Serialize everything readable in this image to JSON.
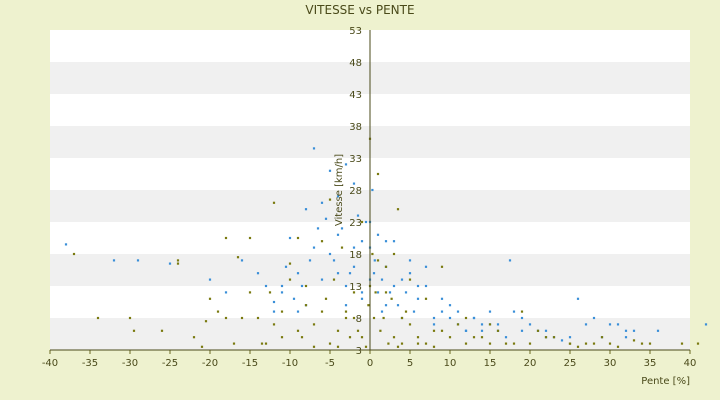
{
  "chart_data": {
    "type": "scatter",
    "title": "VITESSE vs PENTE",
    "xlabel": "Pente [%]",
    "ylabel": "Vitesse [km/h]",
    "xlim": [
      -40,
      40
    ],
    "ylim": [
      3,
      53
    ],
    "x_ticks": [
      "-40",
      "-35",
      "-30",
      "-25",
      "-20",
      "-15",
      "-10",
      "-5",
      "0",
      "5",
      "10",
      "15",
      "20",
      "25",
      "30",
      "35",
      "40"
    ],
    "y_ticks": [
      "3",
      "8",
      "13",
      "18",
      "23",
      "28",
      "33",
      "38",
      "43",
      "48",
      "53"
    ],
    "grid": "horizontal",
    "band_colors": [
      "#ffffff",
      "#f0f0f0"
    ],
    "background": "#eef2cf",
    "series": [
      {
        "color": "#3a8fd8",
        "x": [
          -38,
          -32,
          -29,
          -25,
          -20,
          -18,
          -16,
          -14,
          -13,
          -12,
          -11,
          -10.5,
          -10,
          -9.5,
          -9,
          -8.5,
          -8,
          -7.5,
          -7,
          -6.5,
          -6,
          -5.5,
          -5,
          -4.5,
          -4,
          -3.5,
          -3,
          -2.5,
          -2,
          -1.5,
          -1,
          -0.5,
          0,
          0.3,
          0.6,
          1,
          1.5,
          2,
          2.5,
          3,
          3.5,
          4,
          4.5,
          5,
          5.5,
          6,
          7,
          8,
          9,
          10,
          11,
          12,
          13,
          14,
          15,
          16,
          17,
          17.5,
          18,
          19,
          20,
          21,
          22,
          23,
          24,
          26,
          27,
          28,
          30,
          31,
          32,
          33,
          36,
          42,
          -7,
          -5,
          -4,
          -3,
          -2,
          -1,
          0,
          1,
          2,
          -6,
          -8,
          -9,
          -3,
          -1,
          0.5,
          1.5,
          3,
          4,
          6,
          8,
          10,
          12,
          14,
          -11,
          -12,
          -4,
          -2,
          0,
          2,
          5,
          7,
          9,
          11,
          13,
          15,
          16,
          19,
          22,
          25,
          29,
          32
        ],
        "y": [
          19.5,
          17,
          17,
          16.5,
          14,
          12,
          17,
          15,
          13,
          10.5,
          13,
          16,
          20.5,
          11,
          15,
          13,
          25,
          17,
          34.5,
          22,
          26,
          23.5,
          31,
          17,
          27,
          22,
          32,
          15,
          29,
          24,
          20,
          23,
          19,
          28,
          17,
          21,
          14,
          16,
          12,
          20,
          10,
          14,
          12,
          17,
          9,
          13,
          16,
          8,
          9,
          10,
          7,
          6,
          8,
          6,
          9,
          7,
          5,
          17,
          9,
          8,
          7,
          6,
          6,
          5,
          4.5,
          11,
          7,
          8,
          7,
          7,
          6,
          6,
          6,
          7,
          19,
          18,
          15,
          13,
          16,
          12,
          14,
          12,
          10,
          14,
          10,
          9,
          10,
          11,
          15,
          9,
          13,
          8,
          11,
          7,
          8,
          6,
          7,
          12,
          9,
          21,
          19,
          23,
          20,
          15,
          13,
          11,
          9,
          8,
          7,
          6,
          6,
          5,
          5,
          5,
          5
        ]
      },
      {
        "color": "#7a7a10",
        "x": [
          -37,
          -34,
          -30,
          -29.5,
          -26,
          -24,
          -22,
          -21,
          -20.5,
          -19,
          -18,
          -17,
          -16.5,
          -15,
          -14,
          -13.5,
          -12.5,
          -12,
          -11,
          -10,
          -9,
          -8.5,
          -8,
          -7,
          -6,
          -5.5,
          -5,
          -4.5,
          -4,
          -3.5,
          -3,
          -2.5,
          -2,
          -1.5,
          -1,
          -0.5,
          -0.2,
          0,
          0.3,
          0.7,
          1,
          1.3,
          1.7,
          2,
          2.3,
          2.7,
          3,
          3.5,
          4,
          4.5,
          5,
          6,
          7,
          8,
          9,
          10,
          11,
          12,
          13,
          14,
          15,
          16,
          18,
          19,
          21,
          23,
          25,
          26,
          27,
          29,
          30,
          31,
          33,
          35,
          39,
          41,
          -20,
          -16,
          -13,
          -11,
          -9,
          -7,
          -5,
          -3,
          -1,
          0.5,
          2,
          3.5,
          5,
          7,
          -18,
          -15,
          -10,
          -6,
          -2,
          1,
          4,
          8,
          12,
          17,
          22,
          28,
          34,
          -24,
          -12,
          -8,
          -4,
          0,
          3,
          6,
          9,
          15,
          20,
          25
        ],
        "y": [
          18,
          8,
          8,
          6,
          6,
          16.5,
          5,
          3.5,
          7.5,
          9,
          20.5,
          4,
          17.5,
          20.5,
          8,
          4,
          12,
          26,
          5,
          16.5,
          20.5,
          5,
          10,
          3.5,
          20,
          11,
          26.5,
          14,
          3.5,
          19,
          9,
          5,
          12,
          6,
          23,
          3.5,
          10,
          36,
          18,
          12,
          30.5,
          6,
          8,
          16,
          4,
          11,
          18,
          25,
          4,
          9,
          14,
          5,
          11,
          3.5,
          16,
          5,
          7,
          8,
          5,
          5,
          4,
          6,
          4,
          9,
          6,
          5,
          4,
          3.5,
          4,
          5,
          4,
          3.5,
          4.5,
          4,
          4,
          4,
          11,
          8,
          4,
          9,
          6,
          7,
          4,
          8,
          5,
          8,
          12,
          3.5,
          7,
          4,
          8,
          12,
          14,
          9,
          8,
          17,
          8,
          6,
          4,
          4,
          5,
          4,
          4,
          17,
          7,
          13,
          6,
          13,
          5,
          4,
          6,
          7,
          4,
          4
        ]
      }
    ]
  }
}
